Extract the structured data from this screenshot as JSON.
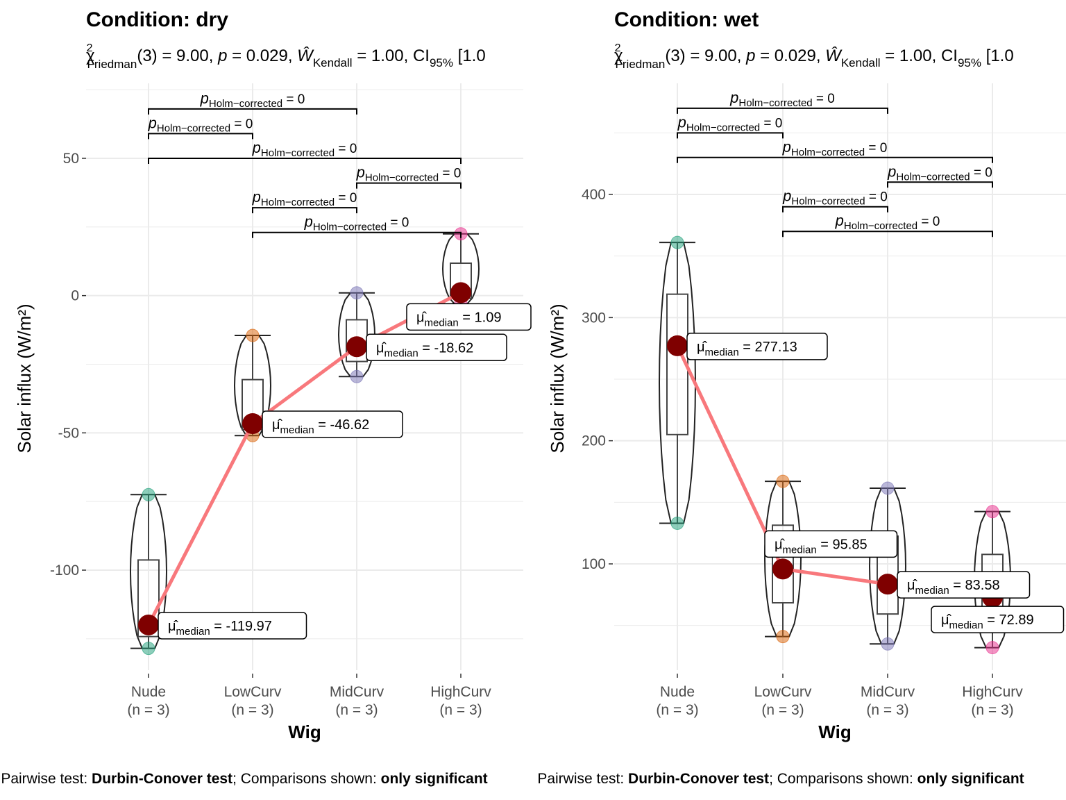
{
  "chart_data": [
    {
      "type": "violin",
      "title": "Condition: dry",
      "subtitle": {
        "stat_name": "Friedman",
        "df": "3",
        "statistic": "9.00",
        "p_value": "0.029",
        "effect_name": "Kendall",
        "effect_value": "1.00",
        "ci_prefix": "CI",
        "ci_level": "95%",
        "ci_start": "[1.0"
      },
      "xlabel": "Wig",
      "ylabel": "Solar influx (W/m²)",
      "categories": [
        "Nude",
        "LowCurv",
        "MidCurv",
        "HighCurv"
      ],
      "n_labels": [
        "(n = 3)",
        "(n = 3)",
        "(n = 3)",
        "(n = 3)"
      ],
      "y_ticks": [
        50,
        0,
        -50,
        -100
      ],
      "y_tick_labels": [
        "50",
        "0",
        "-50",
        "-100"
      ],
      "ylim": [
        -140,
        78
      ],
      "colors": [
        "#1B9E77",
        "#D95F02",
        "#7570B3",
        "#E7298A"
      ],
      "points": [
        [
          -72.5,
          -119.97,
          -128.5
        ],
        [
          -14.5,
          -46.62,
          -51
        ],
        [
          1,
          -18.62,
          -29.5
        ],
        [
          22.5,
          1.09,
          -3
        ]
      ],
      "box": [
        {
          "min": -128.5,
          "q1": -124.2,
          "median": -119.97,
          "q3": -96.3,
          "max": -72.5
        },
        {
          "min": -51,
          "q1": -48.8,
          "median": -46.62,
          "q3": -30.6,
          "max": -14.5
        },
        {
          "min": -29.5,
          "q1": -24,
          "median": -18.62,
          "q3": -8.8,
          "max": 1
        },
        {
          "min": -3,
          "q1": -1,
          "median": 1.09,
          "q3": 11.8,
          "max": 22.5
        }
      ],
      "medians": [
        -119.97,
        -46.62,
        -18.62,
        1.09
      ],
      "median_labels": [
        "= -119.97",
        "= -46.62",
        "= -18.62",
        "= 1.09"
      ],
      "median_label_sub": "median",
      "comparisons": [
        {
          "from": 0,
          "to": 2,
          "y": 68,
          "p": "= 0",
          "p_sub": "Holm−corrected"
        },
        {
          "from": 0,
          "to": 1,
          "y": 59,
          "p": "= 0",
          "p_sub": "Holm−corrected"
        },
        {
          "from": 0,
          "to": 3,
          "y": 50,
          "p": "= 0",
          "p_sub": "Holm−corrected"
        },
        {
          "from": 2,
          "to": 3,
          "y": 41,
          "p": "= 0",
          "p_sub": "Holm−corrected"
        },
        {
          "from": 1,
          "to": 2,
          "y": 32,
          "p": "= 0",
          "p_sub": "Holm−corrected"
        },
        {
          "from": 1,
          "to": 3,
          "y": 23,
          "p": "= 0",
          "p_sub": "Holm−corrected"
        }
      ],
      "caption": {
        "pre": "Pairwise test: ",
        "test": "Durbin-Conover test",
        "mid": "; Comparisons shown: ",
        "shown": "only significant"
      }
    },
    {
      "type": "violin",
      "title": "Condition: wet",
      "subtitle": {
        "stat_name": "Friedman",
        "df": "3",
        "statistic": "9.00",
        "p_value": "0.029",
        "effect_name": "Kendall",
        "effect_value": "1.00",
        "ci_prefix": "CI",
        "ci_level": "95%",
        "ci_start": "[1.0"
      },
      "xlabel": "Wig",
      "ylabel": "Solar influx (W/m²)",
      "categories": [
        "Nude",
        "LowCurv",
        "MidCurv",
        "HighCurv"
      ],
      "n_labels": [
        "(n = 3)",
        "(n = 3)",
        "(n = 3)",
        "(n = 3)"
      ],
      "y_ticks": [
        400,
        300,
        200,
        100
      ],
      "y_tick_labels": [
        "400",
        "300",
        "200",
        "100"
      ],
      "ylim": [
        5,
        488
      ],
      "colors": [
        "#1B9E77",
        "#D95F02",
        "#7570B3",
        "#E7298A"
      ],
      "points": [
        [
          361,
          277.13,
          133
        ],
        [
          167,
          95.85,
          41
        ],
        [
          161.5,
          83.58,
          35
        ],
        [
          142.5,
          72.89,
          32
        ]
      ],
      "box": [
        {
          "min": 133,
          "q1": 205,
          "median": 277.13,
          "q3": 319,
          "max": 361
        },
        {
          "min": 41,
          "q1": 68.4,
          "median": 95.85,
          "q3": 131.4,
          "max": 167
        },
        {
          "min": 35,
          "q1": 59.3,
          "median": 83.58,
          "q3": 122.5,
          "max": 161.5
        },
        {
          "min": 32,
          "q1": 52.4,
          "median": 72.89,
          "q3": 107.7,
          "max": 142.5
        }
      ],
      "medians": [
        277.13,
        95.85,
        83.58,
        72.89
      ],
      "median_labels": [
        "= 277.13",
        "= 95.85",
        "= 83.58",
        "= 72.89"
      ],
      "median_label_sub": "median",
      "comparisons": [
        {
          "from": 0,
          "to": 2,
          "y": 470,
          "p": "= 0",
          "p_sub": "Holm−corrected"
        },
        {
          "from": 0,
          "to": 1,
          "y": 450,
          "p": "= 0",
          "p_sub": "Holm−corrected"
        },
        {
          "from": 0,
          "to": 3,
          "y": 430,
          "p": "= 0",
          "p_sub": "Holm−corrected"
        },
        {
          "from": 2,
          "to": 3,
          "y": 410,
          "p": "= 0",
          "p_sub": "Holm−corrected"
        },
        {
          "from": 1,
          "to": 2,
          "y": 390,
          "p": "= 0",
          "p_sub": "Holm−corrected"
        },
        {
          "from": 1,
          "to": 3,
          "y": 370,
          "p": "= 0",
          "p_sub": "Holm−corrected"
        }
      ],
      "caption": {
        "pre": "Pairwise test: ",
        "test": "Durbin-Conover test",
        "mid": "; Comparisons shown: ",
        "shown": "only significant"
      }
    }
  ],
  "style": {
    "median_line_color": "#F8787C",
    "median_point_color": "#7F0000",
    "outline_color": "#222222",
    "grid_color": "#EBEBEB"
  }
}
